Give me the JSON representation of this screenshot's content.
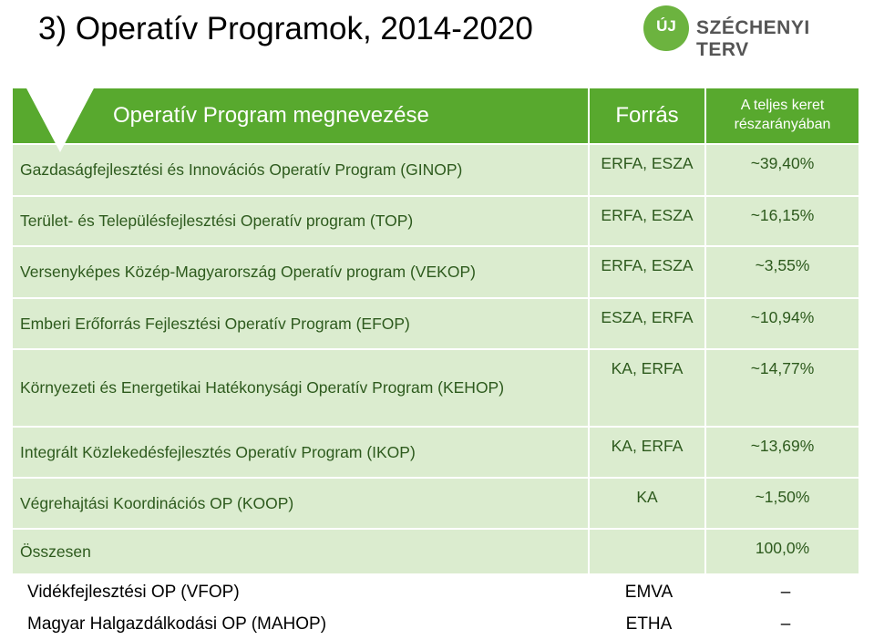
{
  "title": "3) Operatív Programok, 2014-2020",
  "logo": {
    "badge": "ÚJ",
    "text": "SZÉCHENYI TERV"
  },
  "table": {
    "header": {
      "name": "Operatív Program megnevezése",
      "source": "Forrás",
      "share": "A teljes keret részarányában"
    },
    "rows": [
      {
        "name": "Gazdaságfejlesztési és Innovációs Operatív Program (GINOP)",
        "source": "ERFA, ESZA",
        "share": "~39,40%"
      },
      {
        "name": "Terület- és Településfejlesztési Operatív program (TOP)",
        "source": "ERFA, ESZA",
        "share": "~16,15%"
      },
      {
        "name": "Versenyképes Közép-Magyarország Operatív program (VEKOP)",
        "source": "ERFA, ESZA",
        "share": "~3,55%"
      },
      {
        "name": "Emberi Erőforrás Fejlesztési Operatív Program (EFOP)",
        "source": "ESZA, ERFA",
        "share": "~10,94%"
      },
      {
        "name": "Környezeti és Energetikai Hatékonysági Operatív Program (KEHOP)",
        "source": "KA, ERFA",
        "share": "~14,77%"
      },
      {
        "name": "Integrált Közlekedésfejlesztés Operatív Program (IKOP)",
        "source": "KA, ERFA",
        "share": "~13,69%"
      },
      {
        "name": "Végrehajtási Koordinációs OP (KOOP)",
        "source": "KA",
        "share": "~1,50%"
      }
    ],
    "total": {
      "name": "Összesen",
      "share": "100,0%"
    }
  },
  "extra_rows": [
    {
      "name": "Vidékfejlesztési OP (VFOP)",
      "source": "EMVA",
      "share": "–"
    },
    {
      "name": "Magyar Halgazdálkodási OP (MAHOP)",
      "source": "ETHA",
      "share": "–"
    }
  ]
}
